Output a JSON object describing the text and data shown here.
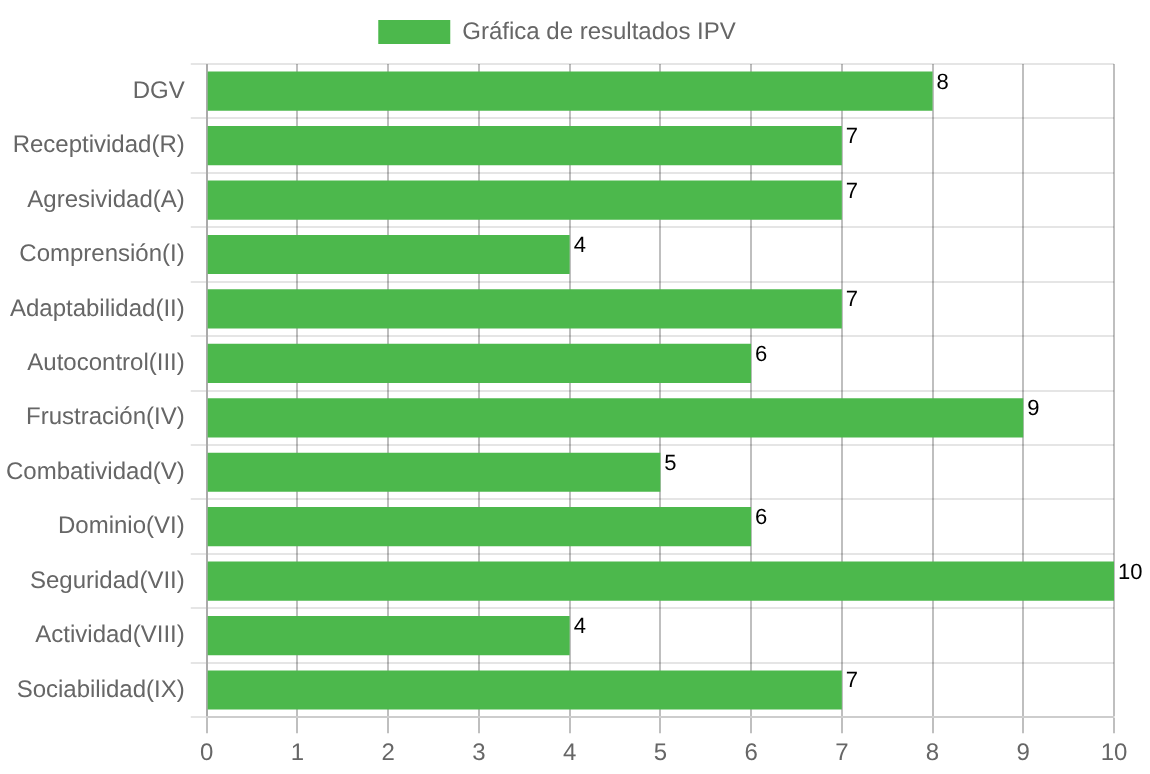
{
  "chart_data": {
    "type": "bar",
    "orientation": "horizontal",
    "categories": [
      "DGV",
      "Receptividad(R)",
      "Agresividad(A)",
      "Comprensión(I)",
      "Adaptabilidad(II)",
      "Autocontrol(III)",
      "Frustración(IV)",
      "Combatividad(V)",
      "Dominio(VI)",
      "Seguridad(VII)",
      "Actividad(VIII)",
      "Sociabilidad(IX)"
    ],
    "series": [
      {
        "name": "Gráfica de resultados IPV",
        "color": "#4cb84c",
        "values": [
          8,
          7,
          7,
          4,
          7,
          6,
          9,
          5,
          6,
          10,
          4,
          7
        ]
      }
    ],
    "xlim": [
      0,
      10
    ],
    "xticks": [
      0,
      1,
      2,
      3,
      4,
      5,
      6,
      7,
      8,
      9,
      10
    ],
    "grid": true,
    "legend": "top",
    "data_labels": true
  }
}
